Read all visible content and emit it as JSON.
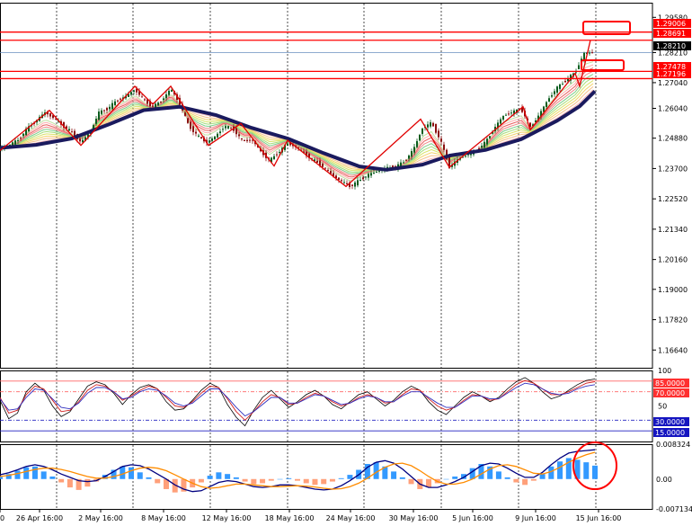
{
  "chart_data": [
    {
      "type": "candlestick",
      "panel": "price",
      "ylim": [
        1.1595,
        1.3015
      ],
      "y_ticks": [
        "1.29580",
        "1.28210",
        "1.27040",
        "1.26040",
        "1.24880",
        "1.23700",
        "1.22520",
        "1.21340",
        "1.20160",
        "1.19000",
        "1.17820",
        "1.16640"
      ],
      "current_price_label": "1.28210",
      "horizontal_levels": [
        {
          "label": "1.29006",
          "value": 1.29006,
          "color": "#ff0000"
        },
        {
          "label": "1.28691",
          "value": 1.28691,
          "color": "#ff0000"
        },
        {
          "label": "1.27478",
          "value": 1.27478,
          "color": "#ff0000"
        },
        {
          "label": "1.27196",
          "value": 1.27196,
          "color": "#ff0000"
        }
      ],
      "close_path": [
        {
          "x": 0,
          "y": 1.2446
        },
        {
          "x": 10,
          "y": 1.2462
        },
        {
          "x": 20,
          "y": 1.2481
        },
        {
          "x": 30,
          "y": 1.2525
        },
        {
          "x": 40,
          "y": 1.2556
        },
        {
          "x": 50,
          "y": 1.2588
        },
        {
          "x": 60,
          "y": 1.2566
        },
        {
          "x": 70,
          "y": 1.2536
        },
        {
          "x": 80,
          "y": 1.2511
        },
        {
          "x": 90,
          "y": 1.2471
        },
        {
          "x": 100,
          "y": 1.2511
        },
        {
          "x": 110,
          "y": 1.2588
        },
        {
          "x": 120,
          "y": 1.2603
        },
        {
          "x": 130,
          "y": 1.2636
        },
        {
          "x": 140,
          "y": 1.265
        },
        {
          "x": 150,
          "y": 1.2678
        },
        {
          "x": 160,
          "y": 1.2636
        },
        {
          "x": 170,
          "y": 1.2609
        },
        {
          "x": 180,
          "y": 1.2636
        },
        {
          "x": 190,
          "y": 1.268
        },
        {
          "x": 200,
          "y": 1.2621
        },
        {
          "x": 210,
          "y": 1.2536
        },
        {
          "x": 220,
          "y": 1.2496
        },
        {
          "x": 230,
          "y": 1.2471
        },
        {
          "x": 240,
          "y": 1.2496
        },
        {
          "x": 250,
          "y": 1.2536
        },
        {
          "x": 260,
          "y": 1.2521
        },
        {
          "x": 270,
          "y": 1.2475
        },
        {
          "x": 280,
          "y": 1.2483
        },
        {
          "x": 290,
          "y": 1.2436
        },
        {
          "x": 300,
          "y": 1.24
        },
        {
          "x": 310,
          "y": 1.2434
        },
        {
          "x": 320,
          "y": 1.2468
        },
        {
          "x": 330,
          "y": 1.2452
        },
        {
          "x": 340,
          "y": 1.2424
        },
        {
          "x": 350,
          "y": 1.24
        },
        {
          "x": 360,
          "y": 1.2376
        },
        {
          "x": 370,
          "y": 1.2343
        },
        {
          "x": 380,
          "y": 1.232
        },
        {
          "x": 390,
          "y": 1.23
        },
        {
          "x": 400,
          "y": 1.2325
        },
        {
          "x": 410,
          "y": 1.2346
        },
        {
          "x": 420,
          "y": 1.236
        },
        {
          "x": 430,
          "y": 1.2372
        },
        {
          "x": 440,
          "y": 1.2376
        },
        {
          "x": 450,
          "y": 1.2398
        },
        {
          "x": 460,
          "y": 1.2444
        },
        {
          "x": 470,
          "y": 1.2527
        },
        {
          "x": 480,
          "y": 1.2548
        },
        {
          "x": 490,
          "y": 1.248
        },
        {
          "x": 500,
          "y": 1.2376
        },
        {
          "x": 510,
          "y": 1.2407
        },
        {
          "x": 520,
          "y": 1.2425
        },
        {
          "x": 530,
          "y": 1.244
        },
        {
          "x": 540,
          "y": 1.2472
        },
        {
          "x": 550,
          "y": 1.2527
        },
        {
          "x": 560,
          "y": 1.2575
        },
        {
          "x": 570,
          "y": 1.259
        },
        {
          "x": 580,
          "y": 1.2602
        },
        {
          "x": 590,
          "y": 1.253
        },
        {
          "x": 600,
          "y": 1.258
        },
        {
          "x": 610,
          "y": 1.264
        },
        {
          "x": 620,
          "y": 1.2685
        },
        {
          "x": 630,
          "y": 1.2714
        },
        {
          "x": 640,
          "y": 1.2745
        },
        {
          "x": 650,
          "y": 1.2818
        },
        {
          "x": 660,
          "y": 1.2821
        }
      ],
      "zigzag": [
        {
          "x": 0,
          "y": 1.244
        },
        {
          "x": 55,
          "y": 1.2596
        },
        {
          "x": 90,
          "y": 1.246
        },
        {
          "x": 150,
          "y": 1.269
        },
        {
          "x": 170,
          "y": 1.262
        },
        {
          "x": 190,
          "y": 1.269
        },
        {
          "x": 232,
          "y": 1.246
        },
        {
          "x": 268,
          "y": 1.2545
        },
        {
          "x": 305,
          "y": 1.238
        },
        {
          "x": 320,
          "y": 1.248
        },
        {
          "x": 385,
          "y": 1.23
        },
        {
          "x": 468,
          "y": 1.2562
        },
        {
          "x": 500,
          "y": 1.2375
        },
        {
          "x": 582,
          "y": 1.261
        },
        {
          "x": 590,
          "y": 1.252
        },
        {
          "x": 640,
          "y": 1.274
        },
        {
          "x": 645,
          "y": 1.269
        },
        {
          "x": 657,
          "y": 1.287
        }
      ],
      "moving_average": [
        {
          "x": 0,
          "y": 1.245
        },
        {
          "x": 40,
          "y": 1.2462
        },
        {
          "x": 80,
          "y": 1.2487
        },
        {
          "x": 120,
          "y": 1.254
        },
        {
          "x": 160,
          "y": 1.2597
        },
        {
          "x": 200,
          "y": 1.261
        },
        {
          "x": 240,
          "y": 1.2578
        },
        {
          "x": 280,
          "y": 1.2528
        },
        {
          "x": 320,
          "y": 1.2487
        },
        {
          "x": 360,
          "y": 1.243
        },
        {
          "x": 400,
          "y": 1.2378
        },
        {
          "x": 430,
          "y": 1.2365
        },
        {
          "x": 470,
          "y": 1.2385
        },
        {
          "x": 500,
          "y": 1.242
        },
        {
          "x": 540,
          "y": 1.2442
        },
        {
          "x": 580,
          "y": 1.2484
        },
        {
          "x": 620,
          "y": 1.2556
        },
        {
          "x": 645,
          "y": 1.2612
        },
        {
          "x": 662,
          "y": 1.2671
        }
      ],
      "ma_ribbon": true
    },
    {
      "type": "line",
      "panel": "oscillator",
      "ylim": [
        0,
        100
      ],
      "y_ticks": [
        "100",
        "50",
        "0"
      ],
      "levels": [
        {
          "label": "85.0000",
          "value": 85
        },
        {
          "label": "70.0000",
          "value": 70
        },
        {
          "label": "30.0000",
          "value": 30
        },
        {
          "label": "15.0000",
          "value": 15
        }
      ],
      "series": [
        {
          "values": [
            58,
            32,
            40,
            70,
            82,
            72,
            50,
            35,
            42,
            60,
            78,
            84,
            80,
            68,
            52,
            66,
            76,
            80,
            74,
            56,
            44,
            46,
            58,
            72,
            82,
            76,
            52,
            34,
            22,
            44,
            62,
            72,
            60,
            48,
            56,
            66,
            72,
            64,
            52,
            46,
            56,
            66,
            70,
            60,
            50,
            58,
            70,
            78,
            72,
            56,
            44,
            38,
            50,
            62,
            70,
            64,
            56,
            62,
            74,
            84,
            90,
            82,
            70,
            60,
            64,
            72,
            80,
            86,
            88
          ]
        },
        {
          "values": [
            62,
            40,
            44,
            66,
            78,
            74,
            58,
            42,
            44,
            56,
            72,
            80,
            78,
            70,
            58,
            64,
            72,
            78,
            74,
            62,
            50,
            48,
            56,
            68,
            78,
            76,
            60,
            42,
            30,
            42,
            56,
            66,
            62,
            52,
            54,
            62,
            68,
            64,
            56,
            50,
            54,
            62,
            66,
            62,
            54,
            56,
            66,
            74,
            72,
            60,
            50,
            44,
            48,
            58,
            66,
            64,
            58,
            60,
            70,
            80,
            86,
            82,
            74,
            66,
            66,
            70,
            76,
            82,
            84
          ]
        },
        {
          "values": [
            60,
            44,
            46,
            62,
            74,
            72,
            60,
            48,
            46,
            54,
            68,
            76,
            76,
            70,
            60,
            62,
            70,
            74,
            72,
            64,
            54,
            50,
            54,
            64,
            74,
            74,
            62,
            48,
            36,
            42,
            52,
            62,
            62,
            54,
            54,
            60,
            66,
            64,
            58,
            52,
            54,
            60,
            64,
            62,
            56,
            56,
            64,
            70,
            70,
            62,
            54,
            48,
            48,
            56,
            64,
            64,
            60,
            60,
            68,
            76,
            82,
            80,
            74,
            68,
            66,
            68,
            74,
            78,
            80
          ]
        }
      ]
    },
    {
      "type": "bar",
      "panel": "macd",
      "ylim": [
        -0.007134,
        0.008324
      ],
      "y_ticks": [
        "0.008324",
        "0.00",
        "-0.007134"
      ],
      "series": [
        {
          "name": "histogram",
          "values": [
            0.0005,
            0.0012,
            0.002,
            0.0028,
            0.003,
            0.0018,
            0.0006,
            -0.0008,
            -0.002,
            -0.0026,
            -0.0018,
            -0.0006,
            0.001,
            0.0022,
            0.003,
            0.0028,
            0.0016,
            0.0004,
            -0.001,
            -0.0024,
            -0.0032,
            -0.003,
            -0.002,
            -0.0008,
            0.0008,
            0.0016,
            0.0012,
            0.0004,
            -0.0006,
            -0.0012,
            -0.001,
            -0.0004,
            0.0,
            0.0002,
            -0.0004,
            -0.001,
            -0.0014,
            -0.0012,
            -0.0006,
            0.0002,
            0.001,
            0.0022,
            0.0036,
            0.004,
            0.003,
            0.0018,
            0.0004,
            -0.0012,
            -0.0024,
            -0.002,
            -0.001,
            0.0,
            0.0006,
            0.0012,
            0.0026,
            0.0036,
            0.003,
            0.0018,
            0.0004,
            -0.0008,
            -0.0014,
            -0.0004,
            0.0012,
            0.003,
            0.0042,
            0.005,
            0.0046,
            0.004,
            0.0032
          ]
        },
        {
          "name": "macd",
          "values": [
            0.001,
            0.0015,
            0.0022,
            0.003,
            0.0034,
            0.003,
            0.0022,
            0.0012,
            0.0004,
            -0.0004,
            -0.0006,
            -0.0004,
            0.0006,
            0.0018,
            0.003,
            0.0034,
            0.0032,
            0.0024,
            0.0012,
            0.0,
            -0.0014,
            -0.0024,
            -0.003,
            -0.0028,
            -0.0018,
            -0.0008,
            -0.0004,
            -0.0006,
            -0.0012,
            -0.0018,
            -0.002,
            -0.0018,
            -0.0014,
            -0.0014,
            -0.0016,
            -0.002,
            -0.0024,
            -0.0026,
            -0.0024,
            -0.0016,
            -0.0004,
            0.001,
            0.0028,
            0.004,
            0.0044,
            0.0038,
            0.0024,
            0.0006,
            -0.0012,
            -0.002,
            -0.002,
            -0.0014,
            -0.0006,
            0.0004,
            0.0018,
            0.0032,
            0.0038,
            0.0036,
            0.0026,
            0.0014,
            0.0004,
            0.0004,
            0.0016,
            0.0034,
            0.005,
            0.0062,
            0.0066,
            0.0068,
            0.007
          ]
        },
        {
          "name": "signal",
          "values": [
            0.0006,
            0.0009,
            0.0013,
            0.0018,
            0.0023,
            0.0026,
            0.0026,
            0.0023,
            0.0018,
            0.0012,
            0.0006,
            0.0002,
            0.0002,
            0.0006,
            0.0012,
            0.002,
            0.0026,
            0.0028,
            0.0026,
            0.002,
            0.001,
            0.0,
            -0.001,
            -0.0018,
            -0.0022,
            -0.002,
            -0.0016,
            -0.0012,
            -0.0012,
            -0.0014,
            -0.0016,
            -0.0018,
            -0.0018,
            -0.0017,
            -0.0016,
            -0.0017,
            -0.0019,
            -0.0022,
            -0.0024,
            -0.0023,
            -0.0018,
            -0.001,
            0.0002,
            0.0016,
            0.0028,
            0.0036,
            0.0038,
            0.0032,
            0.002,
            0.0006,
            -0.0006,
            -0.0012,
            -0.0012,
            -0.0008,
            0.0,
            0.0012,
            0.0024,
            0.0032,
            0.0034,
            0.003,
            0.0022,
            0.0014,
            0.0012,
            0.0018,
            0.0028,
            0.004,
            0.005,
            0.0058,
            0.0064
          ]
        }
      ]
    }
  ],
  "x_axis_labels": [
    "0",
    "26 Apr 16:00",
    "2 May 16:00",
    "8 May 16:00",
    "12 May 16:00",
    "18 May 16:00",
    "24 May 16:00",
    "30 May 16:00",
    "5 Jun 16:00",
    "9 Jun 16:00",
    "15 Jun 16:00"
  ]
}
